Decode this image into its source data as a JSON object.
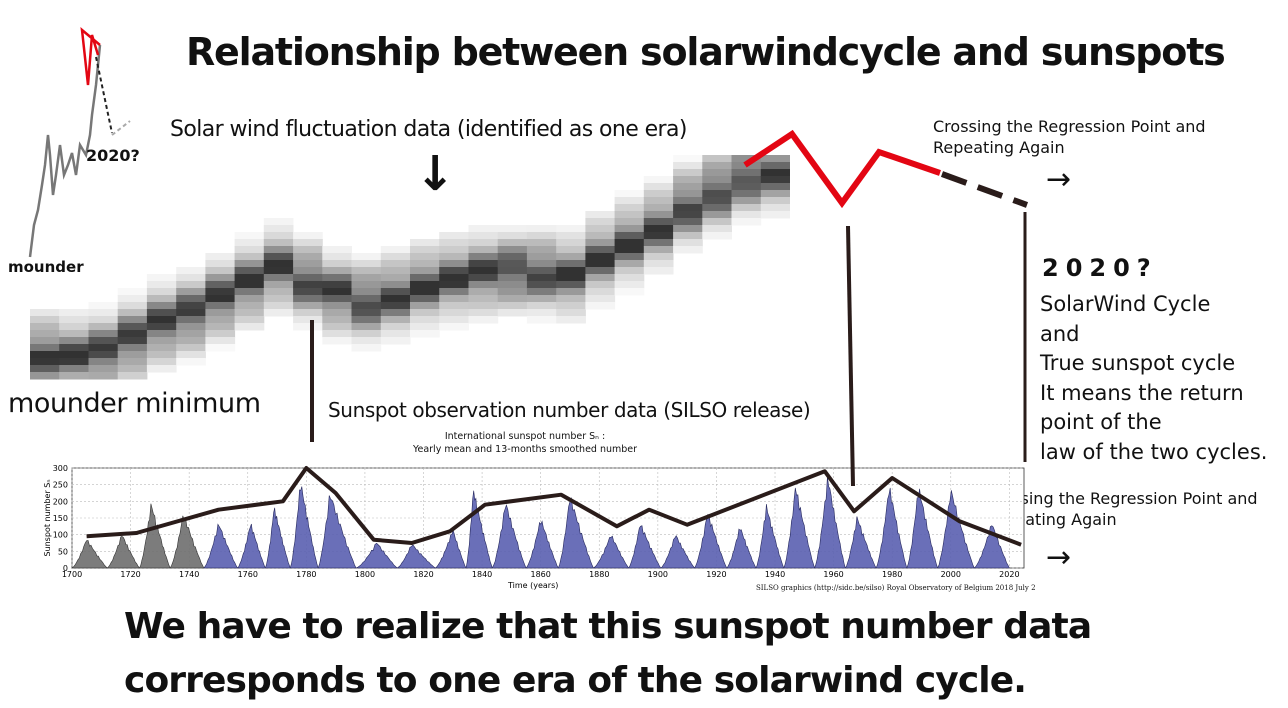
{
  "title": "Relationship between solarwindcycle and sunspots",
  "labels": {
    "solar_wind": "Solar wind fluctuation data (identified as one era)",
    "down_arrow": "↓",
    "mounder_small": "mounder",
    "small_2020": "2020?",
    "mounder_minimum": "mounder minimum",
    "sunspot_obs": "Sunspot observation number data (SILSO release)",
    "crossing_top_1": "Crossing the Regression Point and",
    "crossing_top_2": "Repeating Again",
    "arrow_right": "→",
    "year_2020": "2020?",
    "right_lines": [
      "SolarWind Cycle",
      "and",
      "True sunspot cycle",
      "It means the return",
      "point of the",
      "law of the two cycles."
    ],
    "crossing_bot_1": "Crossing the Regression Point and",
    "crossing_bot_2": "Repeating Again",
    "bottom_1": "We have to realize that this sunspot number data",
    "bottom_2": "corresponds to one era of the solarwind cycle."
  },
  "colors": {
    "red_line": "#e30613",
    "dark_line": "#2a1c1a",
    "sunspot_blue": "#5a5fb0",
    "sunspot_early": "#6e6e6e"
  },
  "chart_data": [
    {
      "type": "area",
      "title": "International sunspot number Sₙ :",
      "subtitle": "Yearly mean and 13-months smoothed number",
      "xlabel": "Time (years)",
      "ylabel": "Sunspot number Sₙ",
      "xlim": [
        1700,
        2025
      ],
      "ylim": [
        0,
        300
      ],
      "x_ticks": [
        "1700",
        "1720",
        "1740",
        "1760",
        "1780",
        "1800",
        "1820",
        "1840",
        "1860",
        "1880",
        "1900",
        "1920",
        "1940",
        "1960",
        "1980",
        "2000",
        "2020"
      ],
      "y_ticks": [
        "0",
        "50",
        "100",
        "150",
        "200",
        "250",
        "300"
      ],
      "grid": true,
      "credit": "SILSO graphics (http://sidc.be/silso)   Royal Observatory of Belgium   2018 July 2",
      "series": [
        {
          "cycle_peaks": [
            [
              1705,
              90
            ],
            [
              1717,
              105
            ],
            [
              1727,
              200
            ],
            [
              1738,
              170
            ],
            [
              1750,
              140
            ],
            [
              1761,
              140
            ],
            [
              1769,
              190
            ],
            [
              1778,
              270
            ],
            [
              1788,
              235
            ],
            [
              1804,
              80
            ],
            [
              1816,
              75
            ],
            [
              1830,
              120
            ],
            [
              1837,
              245
            ],
            [
              1848,
              205
            ],
            [
              1860,
              155
            ],
            [
              1870,
              225
            ],
            [
              1884,
              105
            ],
            [
              1894,
              140
            ],
            [
              1906,
              105
            ],
            [
              1917,
              175
            ],
            [
              1928,
              130
            ],
            [
              1937,
              195
            ],
            [
              1947,
              255
            ],
            [
              1958,
              285
            ],
            [
              1968,
              160
            ],
            [
              1979,
              255
            ],
            [
              1989,
              255
            ],
            [
              2000,
              245
            ],
            [
              2014,
              140
            ]
          ]
        }
      ],
      "overlay_line": [
        [
          1705,
          95
        ],
        [
          1722,
          105
        ],
        [
          1750,
          175
        ],
        [
          1772,
          200
        ],
        [
          1780,
          300
        ],
        [
          1790,
          225
        ],
        [
          1803,
          85
        ],
        [
          1816,
          75
        ],
        [
          1829,
          110
        ],
        [
          1841,
          190
        ],
        [
          1867,
          220
        ],
        [
          1886,
          125
        ],
        [
          1897,
          175
        ],
        [
          1910,
          130
        ],
        [
          1957,
          290
        ],
        [
          1967,
          170
        ],
        [
          1980,
          270
        ],
        [
          2003,
          140
        ],
        [
          2024,
          70
        ]
      ]
    },
    {
      "type": "heatmap",
      "title": "",
      "note": "grayscale density band rising left-to-right (solar wind fluctuation)",
      "columns": 26,
      "center_trend": [
        0.1,
        0.08,
        0.12,
        0.25,
        0.4,
        0.5,
        0.65,
        0.8,
        0.95,
        0.82,
        0.7,
        0.62,
        0.68,
        0.78,
        0.85,
        0.9,
        0.92,
        0.9,
        0.88,
        1.05,
        1.2,
        1.35,
        1.55,
        1.7,
        1.85,
        1.9
      ]
    }
  ],
  "small_chart": {
    "type": "line",
    "note": "small long-term trend sketch from mounder to 2020?",
    "points": [
      [
        0,
        0.0
      ],
      [
        0.1,
        0.35
      ],
      [
        0.2,
        0.45
      ],
      [
        0.3,
        0.3
      ],
      [
        0.4,
        0.55
      ],
      [
        0.5,
        0.5
      ],
      [
        0.6,
        0.7
      ],
      [
        0.7,
        0.85
      ],
      [
        0.8,
        0.98
      ],
      [
        0.9,
        0.9
      ]
    ]
  }
}
